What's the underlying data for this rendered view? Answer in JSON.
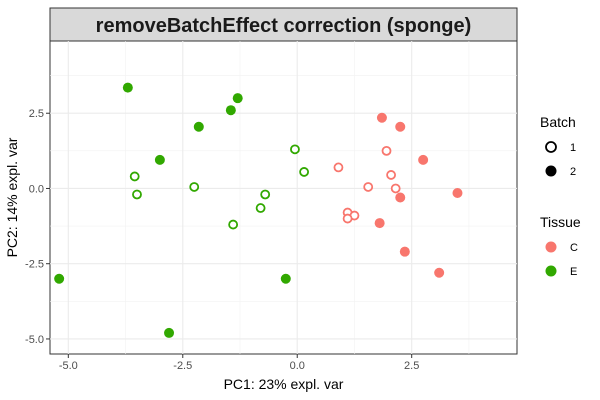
{
  "chart_data": {
    "type": "scatter",
    "title": "removeBatchEffect correction (sponge)",
    "xlabel": "PC1: 23% expl. var",
    "ylabel": "PC2: 14% expl. var",
    "xlim": [
      -5.4,
      4.8
    ],
    "ylim": [
      -5.5,
      4.9
    ],
    "x_ticks": [
      -5.0,
      -2.5,
      0.0,
      2.5
    ],
    "x_tick_labels": [
      "-5.0",
      "-2.5",
      "0.0",
      "2.5"
    ],
    "y_ticks": [
      -5.0,
      -2.5,
      0.0,
      2.5
    ],
    "y_tick_labels": [
      "-5.0",
      "-2.5",
      "0.0",
      "2.5"
    ],
    "grid": true,
    "legend_position": "right",
    "legends": {
      "batch": {
        "title": "Batch",
        "items": [
          {
            "label": "1",
            "shape": "open-circle"
          },
          {
            "label": "2",
            "shape": "filled-circle"
          }
        ]
      },
      "tissue": {
        "title": "Tissue",
        "items": [
          {
            "label": "C",
            "color": "#F8766D"
          },
          {
            "label": "E",
            "color": "#31A800"
          }
        ]
      }
    },
    "colors": {
      "C": "#F8766D",
      "E": "#31A800"
    },
    "points": [
      {
        "x": -3.7,
        "y": 3.35,
        "batch": "2",
        "tissue": "E"
      },
      {
        "x": -1.3,
        "y": 3.0,
        "batch": "2",
        "tissue": "E"
      },
      {
        "x": -1.45,
        "y": 2.6,
        "batch": "2",
        "tissue": "E"
      },
      {
        "x": -2.15,
        "y": 2.05,
        "batch": "2",
        "tissue": "E"
      },
      {
        "x": -3.0,
        "y": 0.95,
        "batch": "2",
        "tissue": "E"
      },
      {
        "x": -5.2,
        "y": -3.0,
        "batch": "2",
        "tissue": "E"
      },
      {
        "x": -2.8,
        "y": -4.8,
        "batch": "2",
        "tissue": "E"
      },
      {
        "x": -0.25,
        "y": -3.0,
        "batch": "2",
        "tissue": "E"
      },
      {
        "x": -3.55,
        "y": 0.4,
        "batch": "1",
        "tissue": "E"
      },
      {
        "x": -3.5,
        "y": -0.2,
        "batch": "1",
        "tissue": "E"
      },
      {
        "x": -2.25,
        "y": 0.05,
        "batch": "1",
        "tissue": "E"
      },
      {
        "x": -1.4,
        "y": -1.2,
        "batch": "1",
        "tissue": "E"
      },
      {
        "x": -0.8,
        "y": -0.65,
        "batch": "1",
        "tissue": "E"
      },
      {
        "x": -0.7,
        "y": -0.2,
        "batch": "1",
        "tissue": "E"
      },
      {
        "x": -0.05,
        "y": 1.3,
        "batch": "1",
        "tissue": "E"
      },
      {
        "x": 0.15,
        "y": 0.55,
        "batch": "1",
        "tissue": "E"
      },
      {
        "x": 1.85,
        "y": 2.35,
        "batch": "2",
        "tissue": "C"
      },
      {
        "x": 2.25,
        "y": 2.05,
        "batch": "2",
        "tissue": "C"
      },
      {
        "x": 2.75,
        "y": 0.95,
        "batch": "2",
        "tissue": "C"
      },
      {
        "x": 3.5,
        "y": -0.15,
        "batch": "2",
        "tissue": "C"
      },
      {
        "x": 2.25,
        "y": -0.3,
        "batch": "2",
        "tissue": "C"
      },
      {
        "x": 1.8,
        "y": -1.15,
        "batch": "2",
        "tissue": "C"
      },
      {
        "x": 2.35,
        "y": -2.1,
        "batch": "2",
        "tissue": "C"
      },
      {
        "x": 3.1,
        "y": -2.8,
        "batch": "2",
        "tissue": "C"
      },
      {
        "x": 0.9,
        "y": 0.7,
        "batch": "1",
        "tissue": "C"
      },
      {
        "x": 1.95,
        "y": 1.25,
        "batch": "1",
        "tissue": "C"
      },
      {
        "x": 2.05,
        "y": 0.45,
        "batch": "1",
        "tissue": "C"
      },
      {
        "x": 1.55,
        "y": 0.05,
        "batch": "1",
        "tissue": "C"
      },
      {
        "x": 2.15,
        "y": 0.0,
        "batch": "1",
        "tissue": "C"
      },
      {
        "x": 1.1,
        "y": -0.8,
        "batch": "1",
        "tissue": "C"
      },
      {
        "x": 1.25,
        "y": -0.9,
        "batch": "1",
        "tissue": "C"
      },
      {
        "x": 1.1,
        "y": -1.0,
        "batch": "1",
        "tissue": "C"
      }
    ]
  }
}
